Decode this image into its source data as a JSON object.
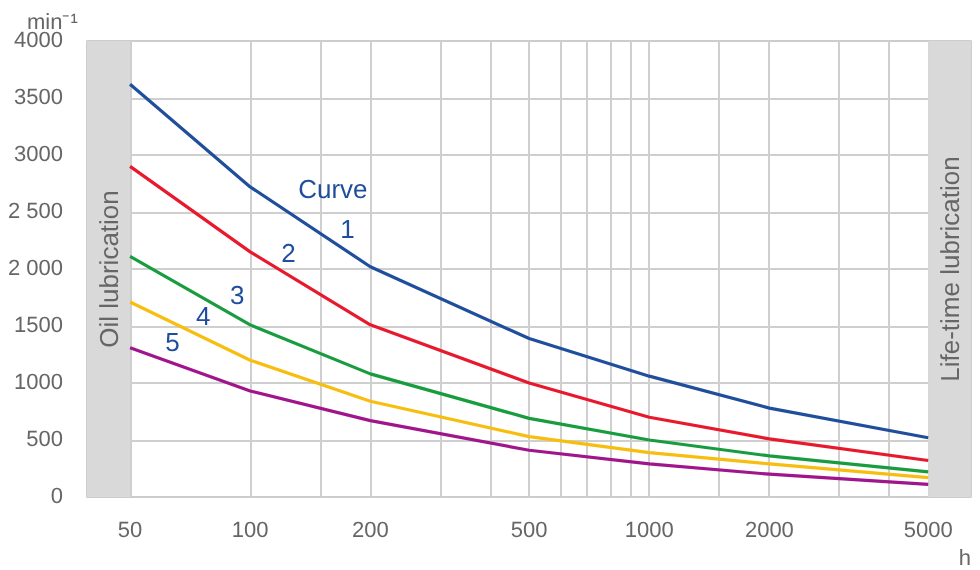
{
  "chart_data": {
    "type": "line",
    "xlabel": "h",
    "ylabel": "min⁻¹",
    "log": "x",
    "grid": true,
    "line_style": "solid",
    "marker": "none",
    "x": [
      50,
      100,
      200,
      500,
      1000,
      2000,
      5000
    ],
    "xlim": [
      39,
      6400
    ],
    "ylim": [
      0,
      4000
    ],
    "xticks": [
      50,
      100,
      {
        "value": 150,
        "label": null
      },
      200,
      {
        "value": 300,
        "label": null
      },
      {
        "value": 400,
        "label": null
      },
      500,
      {
        "value": 600,
        "label": null
      },
      {
        "value": 700,
        "label": null
      },
      {
        "value": 800,
        "label": null
      },
      {
        "value": 900,
        "label": null
      },
      1000,
      {
        "value": 1500,
        "label": null
      },
      2000,
      {
        "value": 3000,
        "label": null
      },
      {
        "value": 4000,
        "label": null
      },
      5000
    ],
    "yticks": [
      0,
      500,
      1000,
      1500,
      {
        "value": 2000,
        "label": "2 000"
      },
      {
        "value": 2500,
        "label": "2 500"
      },
      3000,
      3500,
      4000
    ],
    "series": [
      {
        "name": "1",
        "color": "#1f4e9c",
        "values": [
          3620,
          2720,
          2020,
          1390,
          1060,
          780,
          520
        ]
      },
      {
        "name": "2",
        "color": "#e8192c",
        "values": [
          2900,
          2150,
          1510,
          1000,
          700,
          510,
          320
        ]
      },
      {
        "name": "3",
        "color": "#179c3e",
        "values": [
          2110,
          1510,
          1080,
          690,
          500,
          360,
          220
        ]
      },
      {
        "name": "4",
        "color": "#f7be0f",
        "values": [
          1710,
          1200,
          840,
          530,
          390,
          290,
          170
        ]
      },
      {
        "name": "5",
        "color": "#a0148c",
        "values": [
          1310,
          930,
          670,
          410,
          290,
          200,
          110
        ]
      }
    ],
    "bands": [
      {
        "axis": "x",
        "from": 39,
        "to": 50,
        "label": "Oil lubrication",
        "color": "#d9d9d9"
      },
      {
        "axis": "x",
        "from": 5000,
        "to": 6400,
        "label": "Life-time lubrication",
        "color": "#d9d9d9"
      }
    ],
    "annotations": [
      "Curve"
    ]
  }
}
